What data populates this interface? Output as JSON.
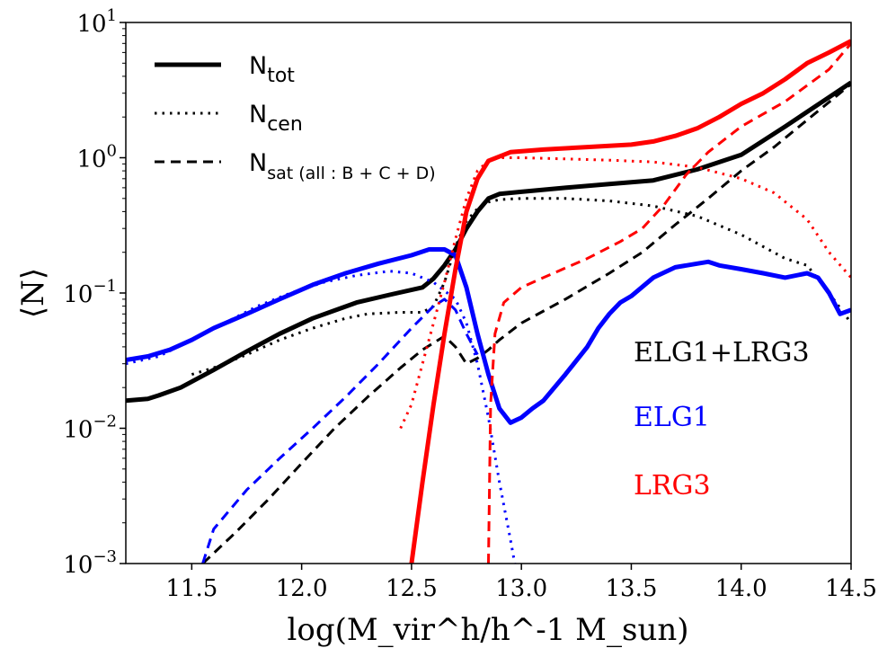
{
  "chart_data": {
    "type": "line",
    "xlabel": "log(M_vir^h/h^-1 M_sun)",
    "ylabel": "⟨N⟩",
    "xlim": [
      11.2,
      14.5
    ],
    "ylim_log10": [
      -3,
      1
    ],
    "y_scale": "log",
    "xticks": [
      "11.5",
      "12.0",
      "12.5",
      "13.0",
      "13.5",
      "14.0",
      "14.5"
    ],
    "yticks": [
      {
        "base": "10",
        "exp": "−3",
        "log": -3
      },
      {
        "base": "10",
        "exp": "−2",
        "log": -2
      },
      {
        "base": "10",
        "exp": "−1",
        "log": -1
      },
      {
        "base": "10",
        "exp": "0",
        "log": 0
      },
      {
        "base": "10",
        "exp": "1",
        "log": 1
      }
    ],
    "legend": {
      "placement": "top-left",
      "entries": [
        {
          "style": "solid",
          "label": "N",
          "sub": "tot"
        },
        {
          "style": "dotted",
          "label": "N",
          "sub": "cen"
        },
        {
          "style": "dashed",
          "label": "N",
          "sub": "sat (all : B + C + D)"
        }
      ]
    },
    "annotations": [
      {
        "text": "ELG1+LRG3",
        "color": "#000000"
      },
      {
        "text": "ELG1",
        "color": "#0000ff"
      },
      {
        "text": "LRG3",
        "color": "#ff0000"
      }
    ],
    "series": [
      {
        "name": "ELG1+LRG3 N_tot",
        "color": "#000000",
        "style": "solid",
        "x": [
          11.2,
          11.3,
          11.35,
          11.45,
          11.6,
          11.75,
          11.9,
          12.05,
          12.25,
          12.4,
          12.55,
          12.6,
          12.65,
          12.7,
          12.75,
          12.8,
          12.85,
          12.9,
          13.0,
          13.2,
          13.4,
          13.6,
          13.8,
          14.0,
          14.2,
          14.4,
          14.5
        ],
        "y": [
          0.016,
          0.0165,
          0.0175,
          0.02,
          0.027,
          0.037,
          0.05,
          0.065,
          0.085,
          0.097,
          0.11,
          0.128,
          0.16,
          0.21,
          0.3,
          0.4,
          0.5,
          0.54,
          0.56,
          0.6,
          0.64,
          0.68,
          0.82,
          1.05,
          1.7,
          2.8,
          3.6
        ]
      },
      {
        "name": "ELG1+LRG3 N_cen",
        "color": "#000000",
        "style": "dotted",
        "x": [
          11.5,
          11.6,
          11.75,
          11.9,
          12.05,
          12.2,
          12.3,
          12.45,
          12.55,
          12.6,
          12.65,
          12.7,
          12.75,
          12.8,
          12.85,
          12.9,
          13.0,
          13.2,
          13.4,
          13.6,
          13.8,
          14.0,
          14.2,
          14.3,
          14.4,
          14.5
        ],
        "y": [
          0.025,
          0.028,
          0.035,
          0.045,
          0.055,
          0.065,
          0.07,
          0.072,
          0.072,
          0.08,
          0.12,
          0.22,
          0.34,
          0.42,
          0.47,
          0.49,
          0.5,
          0.5,
          0.48,
          0.44,
          0.37,
          0.27,
          0.18,
          0.16,
          0.1,
          0.06
        ]
      },
      {
        "name": "ELG1+LRG3 N_sat",
        "color": "#000000",
        "style": "dashed",
        "x": [
          11.55,
          11.7,
          11.85,
          12.0,
          12.15,
          12.3,
          12.45,
          12.55,
          12.65,
          12.7,
          12.75,
          12.8,
          12.85,
          12.9,
          13.0,
          13.2,
          13.4,
          13.55,
          13.7,
          13.85,
          14.0,
          14.15,
          14.3,
          14.5
        ],
        "y": [
          0.001,
          0.0017,
          0.003,
          0.0055,
          0.01,
          0.017,
          0.028,
          0.038,
          0.048,
          0.04,
          0.03,
          0.033,
          0.038,
          0.045,
          0.06,
          0.09,
          0.14,
          0.2,
          0.32,
          0.5,
          0.8,
          1.2,
          1.9,
          3.5
        ]
      },
      {
        "name": "ELG1 N_tot",
        "color": "#0000ff",
        "style": "solid",
        "x": [
          11.2,
          11.3,
          11.4,
          11.5,
          11.6,
          11.75,
          11.9,
          12.05,
          12.2,
          12.35,
          12.5,
          12.58,
          12.65,
          12.7,
          12.75,
          12.8,
          12.85,
          12.9,
          12.95,
          13.0,
          13.05,
          13.1,
          13.2,
          13.3,
          13.35,
          13.4,
          13.45,
          13.5,
          13.6,
          13.7,
          13.8,
          13.85,
          13.9,
          14.0,
          14.1,
          14.2,
          14.3,
          14.35,
          14.4,
          14.45,
          14.5
        ],
        "y": [
          0.032,
          0.034,
          0.038,
          0.045,
          0.055,
          0.07,
          0.09,
          0.115,
          0.14,
          0.165,
          0.19,
          0.21,
          0.21,
          0.19,
          0.11,
          0.05,
          0.025,
          0.014,
          0.011,
          0.012,
          0.014,
          0.016,
          0.025,
          0.04,
          0.055,
          0.07,
          0.085,
          0.095,
          0.13,
          0.155,
          0.165,
          0.17,
          0.16,
          0.15,
          0.14,
          0.13,
          0.14,
          0.13,
          0.1,
          0.07,
          0.075
        ]
      },
      {
        "name": "ELG1 N_cen",
        "color": "#0000ff",
        "style": "dotted",
        "x": [
          11.2,
          11.35,
          11.5,
          11.65,
          11.8,
          11.95,
          12.1,
          12.25,
          12.4,
          12.5,
          12.6,
          12.7,
          12.75,
          12.8,
          12.85,
          12.9,
          12.95,
          12.97
        ],
        "y": [
          0.03,
          0.034,
          0.045,
          0.06,
          0.08,
          0.1,
          0.12,
          0.135,
          0.145,
          0.14,
          0.12,
          0.09,
          0.06,
          0.03,
          0.012,
          0.004,
          0.0015,
          0.001
        ]
      },
      {
        "name": "ELG1 N_sat",
        "color": "#0000ff",
        "style": "dashed",
        "x": [
          11.55,
          11.6,
          11.75,
          11.9,
          12.05,
          12.2,
          12.35,
          12.5,
          12.6,
          12.65,
          12.7,
          12.75,
          12.8
        ],
        "y": [
          0.001,
          0.0018,
          0.0035,
          0.006,
          0.01,
          0.017,
          0.03,
          0.055,
          0.08,
          0.09,
          0.075,
          0.05,
          0.035
        ]
      },
      {
        "name": "LRG3 N_tot",
        "color": "#ff0000",
        "style": "solid",
        "x": [
          12.5,
          12.55,
          12.6,
          12.65,
          12.7,
          12.75,
          12.8,
          12.85,
          12.95,
          13.1,
          13.3,
          13.5,
          13.6,
          13.7,
          13.8,
          13.9,
          14.0,
          14.1,
          14.2,
          14.3,
          14.4,
          14.5
        ],
        "y": [
          0.001,
          0.004,
          0.015,
          0.05,
          0.15,
          0.4,
          0.7,
          0.95,
          1.1,
          1.15,
          1.2,
          1.25,
          1.32,
          1.45,
          1.65,
          2.0,
          2.5,
          3.0,
          3.8,
          5.0,
          6.0,
          7.3
        ]
      },
      {
        "name": "LRG3 N_cen",
        "color": "#ff0000",
        "style": "dotted",
        "x": [
          12.45,
          12.5,
          12.55,
          12.6,
          12.65,
          12.7,
          12.75,
          12.8,
          12.85,
          12.9,
          13.0,
          13.2,
          13.4,
          13.6,
          13.8,
          14.0,
          14.15,
          14.3,
          14.4,
          14.5
        ],
        "y": [
          0.01,
          0.015,
          0.03,
          0.06,
          0.12,
          0.25,
          0.5,
          0.8,
          0.95,
          1.0,
          1.0,
          0.98,
          0.96,
          0.93,
          0.85,
          0.7,
          0.55,
          0.35,
          0.2,
          0.13
        ]
      },
      {
        "name": "LRG3 N_sat",
        "color": "#ff0000",
        "style": "dashed",
        "x": [
          12.85,
          12.86,
          12.88,
          12.92,
          13.0,
          13.1,
          13.3,
          13.45,
          13.55,
          13.65,
          13.75,
          13.85,
          14.0,
          14.2,
          14.4,
          14.5
        ],
        "y": [
          0.001,
          0.015,
          0.05,
          0.085,
          0.11,
          0.13,
          0.18,
          0.24,
          0.3,
          0.45,
          0.75,
          1.1,
          1.7,
          2.6,
          4.5,
          7.0
        ]
      }
    ]
  }
}
